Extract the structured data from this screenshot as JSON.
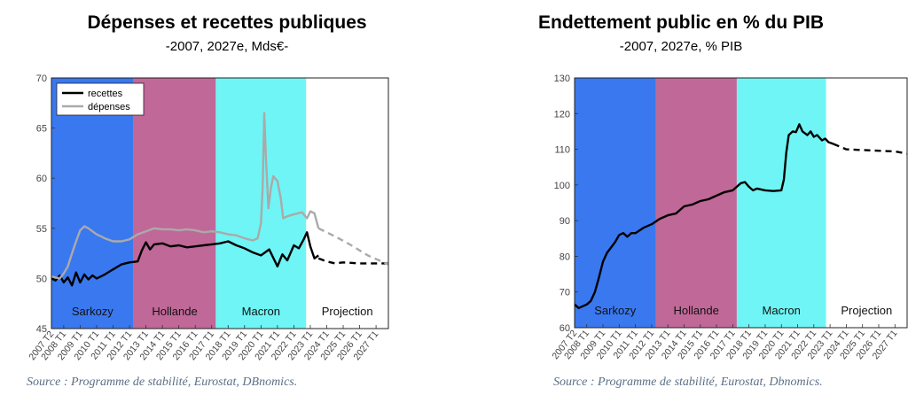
{
  "chart_data": [
    {
      "type": "line",
      "title": "Dépenses et recettes publiques",
      "subtitle": "-2007, 2027e, Mds€-",
      "ylim": [
        45,
        70
      ],
      "yticks": [
        45,
        50,
        55,
        60,
        65,
        70
      ],
      "xlim": [
        2007.25,
        2027.75
      ],
      "xtick_labels": [
        "2007 T2",
        "2008 T1",
        "2009 T1",
        "2010 T1",
        "2011 T1",
        "2012 T1",
        "2013 T1",
        "2014 T1",
        "2015 T1",
        "2016 T1",
        "2017 T1",
        "2018 T1",
        "2019 T1",
        "2020 T1",
        "2021 T1",
        "2022 T1",
        "2023 T1",
        "2024 T1",
        "2025 T1",
        "2026 T1",
        "2027 T1"
      ],
      "legend": {
        "position": "top-left",
        "entries": [
          {
            "name": "recettes",
            "color": "#000000"
          },
          {
            "name": "dépenses",
            "color": "#aaaaaa"
          }
        ]
      },
      "regions": [
        {
          "label": "Sarkozy",
          "from": 2007.25,
          "to": 2012.25,
          "color": "#3a78ef"
        },
        {
          "label": "Hollande",
          "from": 2012.25,
          "to": 2017.25,
          "color": "#c06898"
        },
        {
          "label": "Macron",
          "from": 2017.25,
          "to": 2022.75,
          "color": "#6ff5f5"
        },
        {
          "label": "Projection",
          "from": 2022.75,
          "to": 2027.75,
          "color": "#ffffff"
        }
      ],
      "series": [
        {
          "name": "recettes",
          "color": "#000000",
          "style": "solid",
          "points": [
            [
              2007.25,
              50.0
            ],
            [
              2007.5,
              49.8
            ],
            [
              2007.75,
              50.3
            ],
            [
              2008.0,
              49.6
            ],
            [
              2008.25,
              50.1
            ],
            [
              2008.5,
              49.3
            ],
            [
              2008.75,
              50.6
            ],
            [
              2009.0,
              49.6
            ],
            [
              2009.25,
              50.4
            ],
            [
              2009.5,
              49.9
            ],
            [
              2009.75,
              50.3
            ],
            [
              2010.0,
              50.0
            ],
            [
              2010.5,
              50.4
            ],
            [
              2011.0,
              50.9
            ],
            [
              2011.5,
              51.4
            ],
            [
              2012.0,
              51.6
            ],
            [
              2012.5,
              51.7
            ],
            [
              2012.75,
              52.8
            ],
            [
              2013.0,
              53.6
            ],
            [
              2013.25,
              52.9
            ],
            [
              2013.5,
              53.4
            ],
            [
              2014.0,
              53.5
            ],
            [
              2014.5,
              53.2
            ],
            [
              2015.0,
              53.3
            ],
            [
              2015.5,
              53.1
            ],
            [
              2016.0,
              53.2
            ],
            [
              2016.5,
              53.3
            ],
            [
              2017.0,
              53.4
            ],
            [
              2017.5,
              53.5
            ],
            [
              2018.0,
              53.7
            ],
            [
              2018.5,
              53.3
            ],
            [
              2019.0,
              53.0
            ],
            [
              2019.5,
              52.6
            ],
            [
              2020.0,
              52.3
            ],
            [
              2020.5,
              52.9
            ],
            [
              2021.0,
              51.2
            ],
            [
              2021.3,
              52.4
            ],
            [
              2021.6,
              51.8
            ],
            [
              2022.0,
              53.3
            ],
            [
              2022.3,
              53.0
            ],
            [
              2022.6,
              53.9
            ],
            [
              2022.8,
              54.6
            ],
            [
              2023.0,
              53.2
            ],
            [
              2023.25,
              52.0
            ],
            [
              2023.5,
              52.3
            ]
          ]
        },
        {
          "name": "recettes (projection)",
          "color": "#000000",
          "style": "dashed",
          "points": [
            [
              2023.5,
              52.0
            ],
            [
              2024.0,
              51.7
            ],
            [
              2024.5,
              51.5
            ],
            [
              2025.0,
              51.6
            ],
            [
              2026.0,
              51.5
            ],
            [
              2027.0,
              51.5
            ],
            [
              2027.75,
              51.5
            ]
          ]
        },
        {
          "name": "dépenses",
          "color": "#aaaaaa",
          "style": "solid",
          "points": [
            [
              2007.25,
              50.2
            ],
            [
              2007.5,
              50.1
            ],
            [
              2007.75,
              50.0
            ],
            [
              2008.0,
              50.5
            ],
            [
              2008.25,
              51.2
            ],
            [
              2008.5,
              52.5
            ],
            [
              2008.75,
              53.7
            ],
            [
              2009.0,
              54.8
            ],
            [
              2009.25,
              55.2
            ],
            [
              2009.5,
              55.0
            ],
            [
              2009.75,
              54.7
            ],
            [
              2010.0,
              54.4
            ],
            [
              2010.5,
              54.0
            ],
            [
              2011.0,
              53.7
            ],
            [
              2011.5,
              53.7
            ],
            [
              2012.0,
              53.9
            ],
            [
              2012.5,
              54.4
            ],
            [
              2013.0,
              54.7
            ],
            [
              2013.5,
              55.0
            ],
            [
              2014.0,
              54.9
            ],
            [
              2014.5,
              54.9
            ],
            [
              2015.0,
              54.8
            ],
            [
              2015.5,
              54.9
            ],
            [
              2016.0,
              54.8
            ],
            [
              2016.5,
              54.6
            ],
            [
              2017.0,
              54.7
            ],
            [
              2017.5,
              54.6
            ],
            [
              2018.0,
              54.4
            ],
            [
              2018.5,
              54.3
            ],
            [
              2019.0,
              54.0
            ],
            [
              2019.5,
              53.8
            ],
            [
              2019.8,
              54.0
            ],
            [
              2020.0,
              55.5
            ],
            [
              2020.1,
              59.0
            ],
            [
              2020.2,
              66.5
            ],
            [
              2020.3,
              62.0
            ],
            [
              2020.45,
              57.0
            ],
            [
              2020.6,
              59.0
            ],
            [
              2020.75,
              60.2
            ],
            [
              2021.0,
              59.7
            ],
            [
              2021.2,
              58.0
            ],
            [
              2021.35,
              56.0
            ],
            [
              2021.6,
              56.2
            ],
            [
              2022.0,
              56.4
            ],
            [
              2022.5,
              56.6
            ],
            [
              2022.8,
              56.0
            ],
            [
              2023.0,
              56.7
            ],
            [
              2023.25,
              56.5
            ],
            [
              2023.5,
              55.0
            ]
          ]
        },
        {
          "name": "dépenses (projection)",
          "color": "#aaaaaa",
          "style": "dashed",
          "points": [
            [
              2023.5,
              55.0
            ],
            [
              2024.5,
              54.2
            ],
            [
              2025.5,
              53.3
            ],
            [
              2026.5,
              52.3
            ],
            [
              2027.75,
              51.4
            ]
          ]
        }
      ]
    },
    {
      "type": "line",
      "title": "Endettement public en % du PIB",
      "subtitle": "-2007, 2027e, % PIB",
      "ylim": [
        60,
        130
      ],
      "yticks": [
        60,
        70,
        80,
        90,
        100,
        110,
        120,
        130
      ],
      "xlim": [
        2007.25,
        2027.75
      ],
      "xtick_labels": [
        "2007 T2",
        "2008 T1",
        "2009 T1",
        "2010 T1",
        "2011 T1",
        "2012 T1",
        "2013 T1",
        "2014 T1",
        "2015 T1",
        "2016 T1",
        "2017 T1",
        "2018 T1",
        "2019 T1",
        "2020 T1",
        "2021 T1",
        "2022 T1",
        "2023 T1",
        "2024 T1",
        "2025 T1",
        "2026 T1",
        "2027 T1"
      ],
      "regions": [
        {
          "label": "Sarkozy",
          "from": 2007.25,
          "to": 2012.25,
          "color": "#3a78ef"
        },
        {
          "label": "Hollande",
          "from": 2012.25,
          "to": 2017.25,
          "color": "#c06898"
        },
        {
          "label": "Macron",
          "from": 2017.25,
          "to": 2022.75,
          "color": "#6ff5f5"
        },
        {
          "label": "Projection",
          "from": 2022.75,
          "to": 2027.75,
          "color": "#ffffff"
        }
      ],
      "series": [
        {
          "name": "endettement",
          "color": "#000000",
          "style": "solid",
          "points": [
            [
              2007.25,
              66.5
            ],
            [
              2007.5,
              65.5
            ],
            [
              2007.75,
              66.0
            ],
            [
              2008.0,
              66.5
            ],
            [
              2008.25,
              67.5
            ],
            [
              2008.5,
              70.0
            ],
            [
              2008.75,
              74.0
            ],
            [
              2009.0,
              78.5
            ],
            [
              2009.25,
              81.0
            ],
            [
              2009.5,
              82.5
            ],
            [
              2009.75,
              84.0
            ],
            [
              2010.0,
              86.0
            ],
            [
              2010.25,
              86.5
            ],
            [
              2010.5,
              85.5
            ],
            [
              2010.75,
              86.5
            ],
            [
              2011.0,
              86.5
            ],
            [
              2011.5,
              88.0
            ],
            [
              2012.0,
              89.0
            ],
            [
              2012.5,
              90.5
            ],
            [
              2013.0,
              91.5
            ],
            [
              2013.5,
              92.0
            ],
            [
              2014.0,
              94.0
            ],
            [
              2014.5,
              94.5
            ],
            [
              2015.0,
              95.5
            ],
            [
              2015.5,
              96.0
            ],
            [
              2016.0,
              97.0
            ],
            [
              2016.5,
              98.0
            ],
            [
              2017.0,
              98.5
            ],
            [
              2017.25,
              99.5
            ],
            [
              2017.5,
              100.5
            ],
            [
              2017.75,
              100.8
            ],
            [
              2018.0,
              99.5
            ],
            [
              2018.25,
              98.5
            ],
            [
              2018.5,
              99.0
            ],
            [
              2019.0,
              98.5
            ],
            [
              2019.5,
              98.3
            ],
            [
              2020.0,
              98.5
            ],
            [
              2020.15,
              101.5
            ],
            [
              2020.3,
              109.0
            ],
            [
              2020.45,
              114.0
            ],
            [
              2020.7,
              115.0
            ],
            [
              2020.9,
              114.8
            ],
            [
              2021.1,
              117.0
            ],
            [
              2021.3,
              115.0
            ],
            [
              2021.6,
              114.0
            ],
            [
              2021.8,
              115.0
            ],
            [
              2022.0,
              113.5
            ],
            [
              2022.2,
              114.0
            ],
            [
              2022.5,
              112.5
            ],
            [
              2022.7,
              113.0
            ],
            [
              2022.9,
              112.0
            ],
            [
              2023.2,
              111.5
            ]
          ]
        },
        {
          "name": "endettement (projection)",
          "color": "#000000",
          "style": "dashed",
          "points": [
            [
              2023.2,
              111.5
            ],
            [
              2024.0,
              110.0
            ],
            [
              2025.0,
              109.8
            ],
            [
              2026.0,
              109.6
            ],
            [
              2027.0,
              109.4
            ],
            [
              2027.75,
              108.8
            ]
          ]
        }
      ]
    }
  ],
  "source_left": "Source : Programme de stabilité, Eurostat, DBnomics.",
  "source_right": "Source : Programme de stabilité, Eurostat, Dbnomics."
}
